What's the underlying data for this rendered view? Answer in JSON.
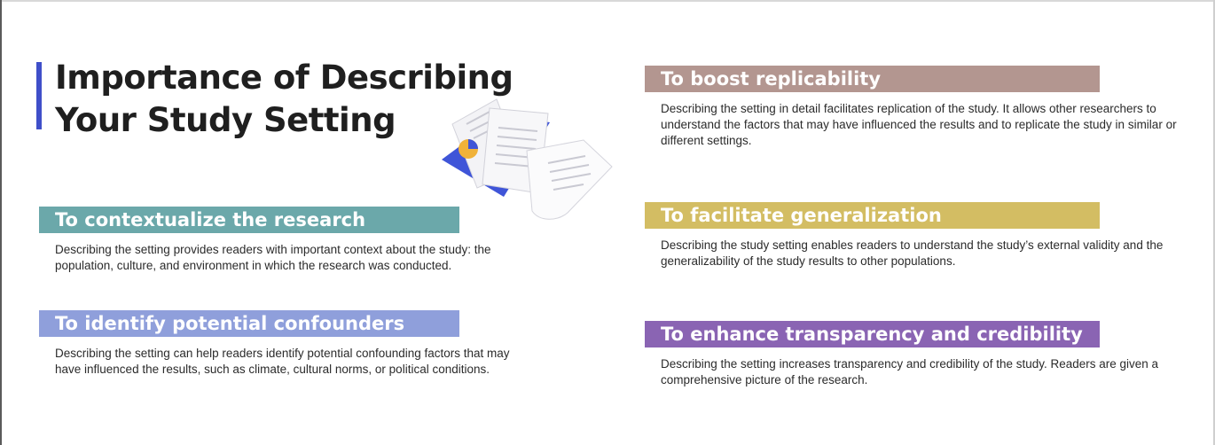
{
  "title": {
    "line1": "Importance of Describing",
    "line2": "Your Study Setting"
  },
  "colors": {
    "accent_bar": "#3f4fc9",
    "contextualize": "#6ba8aa",
    "confounders": "#8f9fdb",
    "replicability": "#b39690",
    "generalization": "#d3bd63",
    "transparency": "#8a64b3"
  },
  "illustration": {
    "icon": "documents-with-pie-chart-icon"
  },
  "sections": [
    {
      "heading": "To contextualize the research",
      "body": "Describing the setting provides readers with important context about the study: the population, culture, and environment in which the research was conducted."
    },
    {
      "heading": "To identify potential confounders",
      "body": "Describing the setting can help readers identify potential confounding factors that may have influenced the results, such as climate, cultural norms, or political conditions."
    },
    {
      "heading": "To boost replicability",
      "body": "Describing the setting in detail facilitates replication of the study. It allows other researchers to understand the factors that may have influenced the results and to replicate the study in similar or different settings."
    },
    {
      "heading": "To facilitate generalization",
      "body": "Describing the study setting enables readers to understand the study’s external validity and the generalizability of the study results to other populations."
    },
    {
      "heading": "To enhance transparency and credibility",
      "body": "Describing the setting increases transparency and credibility of the study. Readers are given a comprehensive picture of the research."
    }
  ]
}
